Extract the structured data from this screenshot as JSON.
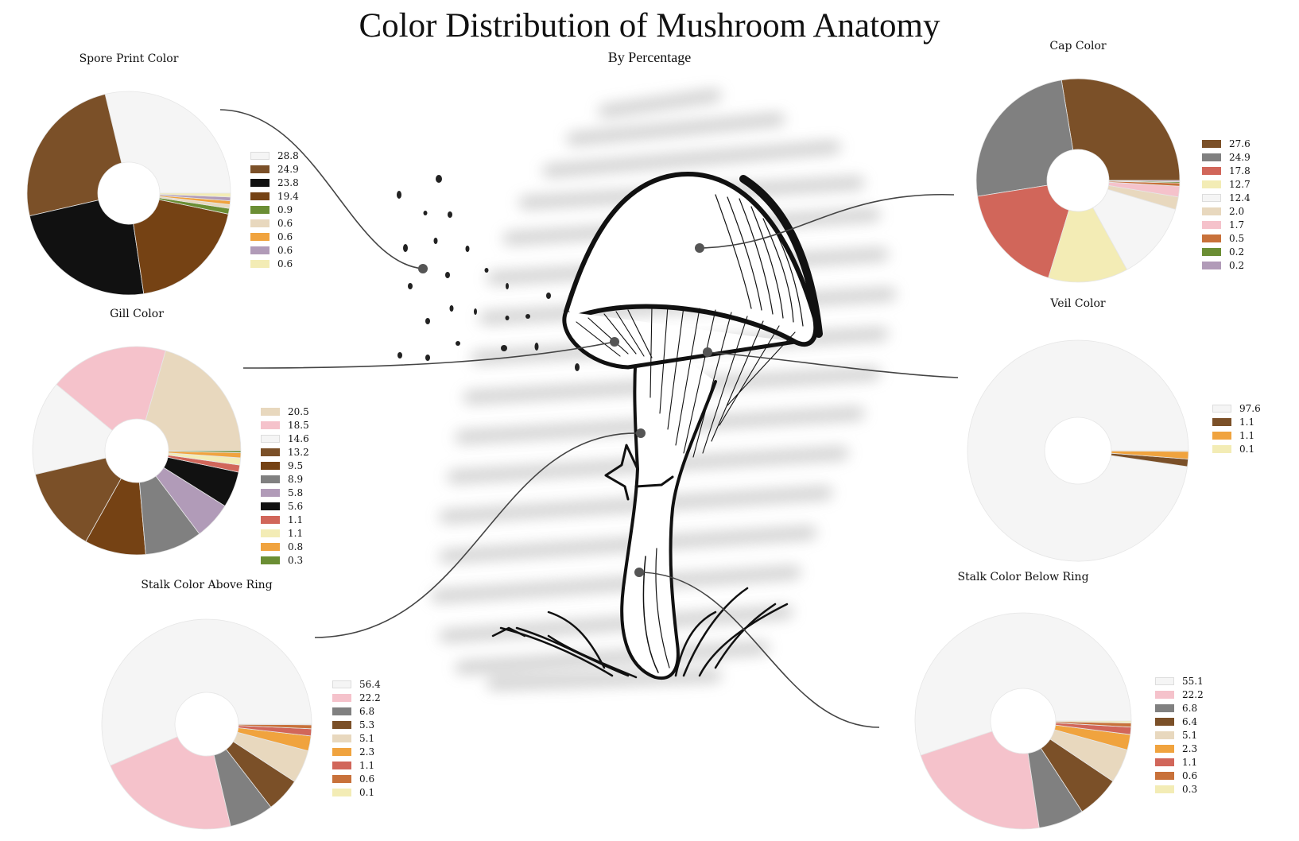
{
  "title": "Color Distribution of Mushroom Anatomy",
  "subtitle": "By Percentage",
  "chart_data": [
    {
      "type": "pie",
      "title": "Spore Print Color",
      "values": [
        28.8,
        24.9,
        23.8,
        19.4,
        0.9,
        0.6,
        0.6,
        0.6,
        0.6
      ],
      "colors": [
        "#f5f5f5",
        "#7b5028",
        "#111111",
        "#754214",
        "#6b8e34",
        "#e8d8be",
        "#f0a33e",
        "#b19bb8",
        "#f3ecb5"
      ]
    },
    {
      "type": "pie",
      "title": "Cap Color",
      "values": [
        27.6,
        24.9,
        17.8,
        12.7,
        12.4,
        2.0,
        1.7,
        0.5,
        0.2,
        0.2
      ],
      "colors": [
        "#7b5028",
        "#808080",
        "#d1665a",
        "#f3ecb5",
        "#f5f5f5",
        "#e8d8be",
        "#f5c2cb",
        "#c8713a",
        "#6b8e34",
        "#b19bb8"
      ]
    },
    {
      "type": "pie",
      "title": "Gill Color",
      "values": [
        20.5,
        18.5,
        14.6,
        13.2,
        9.5,
        8.9,
        5.8,
        5.6,
        1.1,
        1.1,
        0.8,
        0.3
      ],
      "colors": [
        "#e8d8be",
        "#f5c2cb",
        "#f5f5f5",
        "#7b5028",
        "#754214",
        "#808080",
        "#b19bb8",
        "#111111",
        "#d1665a",
        "#f3ecb5",
        "#f0a33e",
        "#6b8e34"
      ]
    },
    {
      "type": "pie",
      "title": "Veil Color",
      "values": [
        97.6,
        1.1,
        1.1,
        0.1
      ],
      "colors": [
        "#f5f5f5",
        "#7b5028",
        "#f0a33e",
        "#f3ecb5"
      ]
    },
    {
      "type": "pie",
      "title": "Stalk Color Above Ring",
      "values": [
        56.4,
        22.2,
        6.8,
        5.3,
        5.1,
        2.3,
        1.1,
        0.6,
        0.1
      ],
      "colors": [
        "#f5f5f5",
        "#f5c2cb",
        "#808080",
        "#7b5028",
        "#e8d8be",
        "#f0a33e",
        "#d1665a",
        "#c8713a",
        "#f3ecb5"
      ]
    },
    {
      "type": "pie",
      "title": "Stalk Color Below Ring",
      "values": [
        55.1,
        22.2,
        6.8,
        6.4,
        5.1,
        2.3,
        1.1,
        0.6,
        0.3
      ],
      "colors": [
        "#f5f5f5",
        "#f5c2cb",
        "#808080",
        "#7b5028",
        "#e8d8be",
        "#f0a33e",
        "#d1665a",
        "#c8713a",
        "#f3ecb5"
      ]
    }
  ]
}
